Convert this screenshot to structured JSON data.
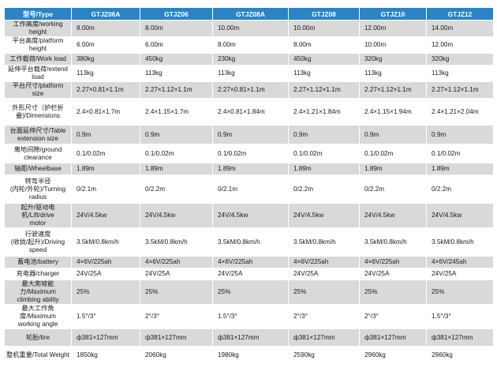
{
  "headers": [
    "型号/Type",
    "GTJZ06A",
    "GTJZ06",
    "GTJZ08A",
    "GTJZ08",
    "GTJZ10",
    "GTJZ12"
  ],
  "rows": [
    {
      "label": "工作高度/working height",
      "values": [
        "8.00m",
        "8.00m",
        "10.00m",
        "10.00m",
        "12.00m",
        "14.00m"
      ]
    },
    {
      "label": "平台高度/platform height",
      "values": [
        "6.00m",
        "6.00m",
        "8.00m",
        "8.00m",
        "10.00m",
        "12.00m"
      ]
    },
    {
      "label": "工作载荷/Work load",
      "values": [
        "380kg",
        "450kg",
        "230kg",
        "450kg",
        "320kg",
        "320kg"
      ]
    },
    {
      "label": "延伸平台载荷/extend load",
      "values": [
        "113kg",
        "113kg",
        "113kg",
        "113kg",
        "113kg",
        "113kg"
      ]
    },
    {
      "label": "平台尺寸/platform size",
      "values": [
        "2.27×0.81×1.1m",
        "2.27×1.12×1.1m",
        "2.27×0.81×1.1m",
        "2.27×1.12×1.1m",
        "2.27×1.12×1.1m",
        "2.27×1.12×1.1m"
      ]
    },
    {
      "label": "外形尺寸（护栏折\n叠)/Dimensions",
      "values": [
        "2.4×0.81×1.7m",
        "2.4×1.15×1.7m",
        "2.4×0.81×1.84m",
        "2.4×1.21×1.84m",
        "2.4×1.15×1.94m",
        "2.4×1.21×2.04m"
      ]
    },
    {
      "label": "台面延伸尺寸/Table\nextension size",
      "values": [
        "0.9m",
        "0.9m",
        "0.9m",
        "0.9m",
        "0.9m",
        "0.9m"
      ]
    },
    {
      "label": "离地间隙/ground\nclearance",
      "values": [
        "0.1/0.02m",
        "0.1/0.02m",
        "0.1/0.02m",
        "0.1/0.02m",
        "0.1/0.02m",
        "0.1/0.02m"
      ]
    },
    {
      "label": "轴距/Wheelbase",
      "values": [
        "1.89m",
        "1.89m",
        "1.89m",
        "1.89m",
        "1.89m",
        "1.89m"
      ]
    },
    {
      "label": "转弯半径\n(内轮/外轮)/Turning\nradius",
      "values": [
        "0/2.1m",
        "0/2.2m",
        "0/2.1m",
        "0/2.2m",
        "0/2.2m",
        "0/2.2m"
      ]
    },
    {
      "label": "起升/驱动电机/Lift/drive\nmotor",
      "values": [
        "24V/4.5kw",
        "24V/4.5kw",
        "24V/4.5kw",
        "24V/4.5kw",
        "24V/4.5kw",
        "24V/4.5kw"
      ]
    },
    {
      "label": "行驶速度\n(收拢/起升)/Driving\nspeed",
      "values": [
        "3.5kM/0.8km/h",
        "3.5kM/0.8km/h",
        "3.5kM/0.8km/h",
        "3.5kM/0.8km/h",
        "3.5kM/0.8km/h",
        "3.5kM/0.8km/h"
      ]
    },
    {
      "label": "蓄电池/battery",
      "values": [
        "4×6V/225ah",
        "4×6V/225ah",
        "4×6V/225ah",
        "4×6V/225ah",
        "4×6V/225ah",
        "4×6V/245ah"
      ]
    },
    {
      "label": "充电器/charger",
      "values": [
        "24V/25A",
        "24V/25A",
        "24V/25A",
        "24V/25A",
        "24V/25A",
        "24V/25A"
      ]
    },
    {
      "label": "最大爬坡能力/Maximum\nclimbing ability",
      "values": [
        "25%",
        "25%",
        "25%",
        "25%",
        "25%",
        "25%"
      ]
    },
    {
      "label": "最大工作角度/Maximum\nworking angle",
      "values": [
        "1.5°/3°",
        "2°/3°",
        "1.5°/3°",
        "2°/3°",
        "2°/3°",
        "1.5°/3°"
      ]
    },
    {
      "label": "轮胎/tire",
      "values": [
        "ф381×127mm",
        "ф381×127mm",
        "ф381×127mm",
        "ф381×127mm",
        "ф381×127mm",
        "ф381×127mm"
      ]
    },
    {
      "label": "整机重量/Total Weight",
      "values": [
        "1850kg",
        "2060kg",
        "1980kg",
        "2590kg",
        "2960kg",
        "2960kg"
      ]
    }
  ],
  "colors": {
    "header_bg": "#2a84c6",
    "row_gray": "#d9d9d9",
    "row_white": "#ffffff"
  }
}
